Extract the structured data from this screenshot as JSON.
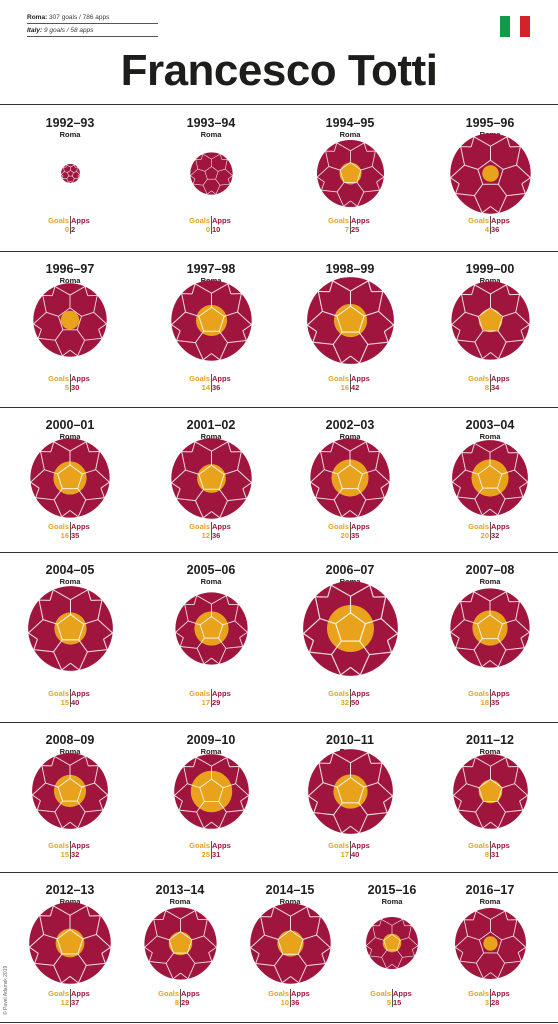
{
  "header": {
    "roma_label": "Roma:",
    "roma_value": "307 goals / 786 apps",
    "italy_label": "Italy:",
    "italy_value": "9 goals / 58 apps",
    "title": "Francesco Totti"
  },
  "flag_colors": [
    "#119b48",
    "#ffffff",
    "#d2232a"
  ],
  "labels": {
    "goals": "Goals",
    "apps": "Apps"
  },
  "colors": {
    "ball": "#a0153e",
    "goals": "#e8a21c",
    "seam": "#ffffff"
  },
  "credit": "© Pavel Adamsk 2019",
  "chart_data": {
    "type": "bubble",
    "encoding": "outer circle area = apps, inner gold circle area = goals",
    "seasons": [
      {
        "season": "1992–93",
        "club": "Roma",
        "goals": 0,
        "apps": 2
      },
      {
        "season": "1993–94",
        "club": "Roma",
        "goals": 0,
        "apps": 10
      },
      {
        "season": "1994–95",
        "club": "Roma",
        "goals": 7,
        "apps": 25
      },
      {
        "season": "1995–96",
        "club": "Roma",
        "goals": 4,
        "apps": 36
      },
      {
        "season": "1996–97",
        "club": "Roma",
        "goals": 5,
        "apps": 30
      },
      {
        "season": "1997–98",
        "club": "Roma",
        "goals": 14,
        "apps": 36
      },
      {
        "season": "1998–99",
        "club": "Roma",
        "goals": 16,
        "apps": 42
      },
      {
        "season": "1999–00",
        "club": "Roma",
        "goals": 8,
        "apps": 34
      },
      {
        "season": "2000–01",
        "club": "Roma",
        "goals": 16,
        "apps": 35
      },
      {
        "season": "2001–02",
        "club": "Roma",
        "goals": 12,
        "apps": 36
      },
      {
        "season": "2002–03",
        "club": "Roma",
        "goals": 20,
        "apps": 35
      },
      {
        "season": "2003–04",
        "club": "Roma",
        "goals": 20,
        "apps": 32
      },
      {
        "season": "2004–05",
        "club": "Roma",
        "goals": 15,
        "apps": 40
      },
      {
        "season": "2005–06",
        "club": "Roma",
        "goals": 17,
        "apps": 29
      },
      {
        "season": "2006–07",
        "club": "Roma",
        "goals": 32,
        "apps": 50
      },
      {
        "season": "2007–08",
        "club": "Roma",
        "goals": 18,
        "apps": 35
      },
      {
        "season": "2008–09",
        "club": "Roma",
        "goals": 15,
        "apps": 32
      },
      {
        "season": "2009–10",
        "club": "Roma",
        "goals": 25,
        "apps": 31
      },
      {
        "season": "2010–11",
        "club": "Roma",
        "goals": 17,
        "apps": 40
      },
      {
        "season": "2011–12",
        "club": "Roma",
        "goals": 8,
        "apps": 31
      },
      {
        "season": "2012–13",
        "club": "Roma",
        "goals": 12,
        "apps": 37
      },
      {
        "season": "2013–14",
        "club": "Roma",
        "goals": 8,
        "apps": 29
      },
      {
        "season": "2014–15",
        "club": "Roma",
        "goals": 10,
        "apps": 36
      },
      {
        "season": "2015–16",
        "club": "Roma",
        "goals": 5,
        "apps": 15
      },
      {
        "season": "2016–17",
        "club": "Roma",
        "goals": 3,
        "apps": 28
      }
    ]
  }
}
